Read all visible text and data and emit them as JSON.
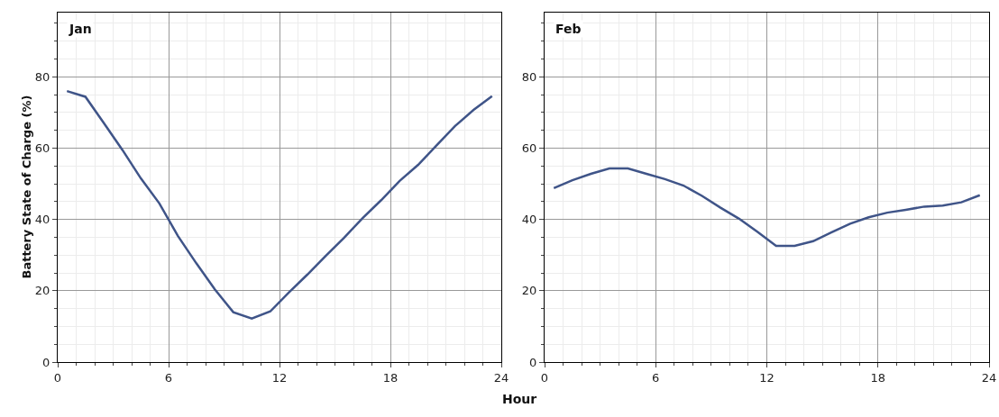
{
  "chart_data": [
    {
      "type": "line",
      "title": "Jan",
      "xlabel": "Hour",
      "ylabel": "Battery State of Charge (%)",
      "x": [
        0.5,
        1.5,
        2.5,
        3.5,
        4.5,
        5.5,
        6.5,
        7.5,
        8.5,
        9.5,
        10.5,
        11.5,
        12.5,
        13.5,
        14.5,
        15.5,
        16.5,
        17.5,
        18.5,
        19.5,
        20.5,
        21.5,
        22.5,
        23.5
      ],
      "series": [
        {
          "color": "#3f5488",
          "values": [
            76,
            74.4,
            67,
            59.5,
            51.5,
            44.5,
            35.4,
            27.7,
            20.4,
            14,
            12.2,
            14.2,
            19.5,
            24.5,
            29.8,
            34.9,
            40.4,
            45.4,
            50.8,
            55.3,
            60.8,
            66.2,
            70.7,
            74.6
          ]
        }
      ],
      "xlim": [
        0,
        24
      ],
      "xticks": [
        0,
        6,
        12,
        18,
        24
      ],
      "ylim": [
        0,
        98
      ],
      "yticks": [
        0,
        20,
        40,
        60,
        80
      ],
      "grid": true,
      "marker": "none",
      "line_style": "solid"
    },
    {
      "type": "line",
      "title": "Feb",
      "x": [
        0.5,
        1.5,
        2.5,
        3.5,
        4.5,
        5.5,
        6.5,
        7.5,
        8.5,
        9.5,
        10.5,
        11.5,
        12.5,
        13.5,
        14.5,
        15.5,
        16.5,
        17.5,
        18.5,
        19.5,
        20.5,
        21.5,
        22.5,
        23.5
      ],
      "series": [
        {
          "color": "#3f5488",
          "values": [
            48.8,
            51,
            52.8,
            54.3,
            54.3,
            52.8,
            51.3,
            49.5,
            46.6,
            43.3,
            40.2,
            36.5,
            32.6,
            32.6,
            33.9,
            36.4,
            38.8,
            40.6,
            41.9,
            42.7,
            43.6,
            43.9,
            44.8,
            46.8
          ]
        }
      ],
      "xlim": [
        0,
        24
      ],
      "xticks": [
        0,
        6,
        12,
        18,
        24
      ],
      "ylim": [
        0,
        98
      ],
      "yticks": [
        0,
        20,
        40,
        60,
        80
      ],
      "grid": true,
      "marker": "none",
      "line_style": "solid"
    }
  ]
}
